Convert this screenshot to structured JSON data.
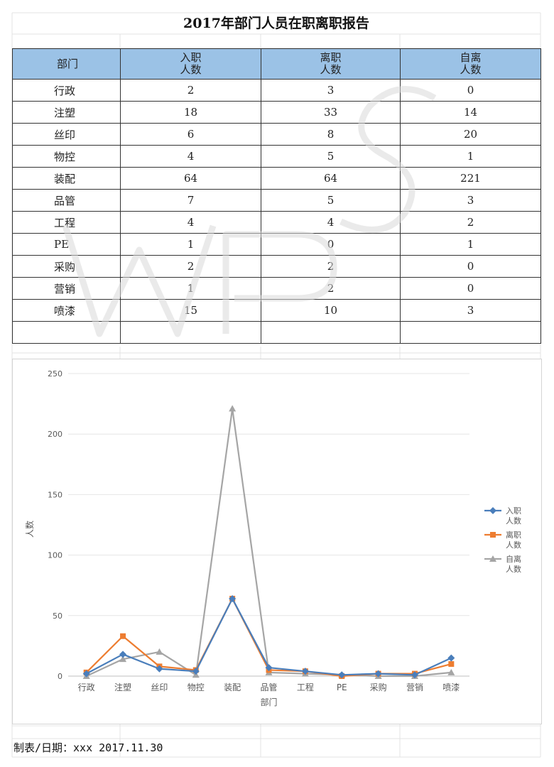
{
  "report": {
    "title": "2017年部门人员在职离职报告",
    "footer": "制表/日期：xxx 2017.11.30"
  },
  "table": {
    "headers": [
      {
        "lines": [
          "部门"
        ]
      },
      {
        "lines": [
          "入职",
          "人数"
        ]
      },
      {
        "lines": [
          "离职",
          "人数"
        ]
      },
      {
        "lines": [
          "自离",
          "人数"
        ]
      }
    ],
    "rows": [
      {
        "dept": "行政",
        "hired": "2",
        "left": "3",
        "self_left": "0"
      },
      {
        "dept": "注塑",
        "hired": "18",
        "left": "33",
        "self_left": "14"
      },
      {
        "dept": "丝印",
        "hired": "6",
        "left": "8",
        "self_left": "20"
      },
      {
        "dept": "物控",
        "hired": "4",
        "left": "5",
        "self_left": "1"
      },
      {
        "dept": "装配",
        "hired": "64",
        "left": "64",
        "self_left": "221"
      },
      {
        "dept": "品管",
        "hired": "7",
        "left": "5",
        "self_left": "3"
      },
      {
        "dept": "工程",
        "hired": "4",
        "left": "4",
        "self_left": "2"
      },
      {
        "dept": "PE",
        "hired": "1",
        "left": "0",
        "self_left": "1"
      },
      {
        "dept": "采购",
        "hired": "2",
        "left": "2",
        "self_left": "0"
      },
      {
        "dept": "营销",
        "hired": "1",
        "left": "2",
        "self_left": "0"
      },
      {
        "dept": "喷漆",
        "hired": "15",
        "left": "10",
        "self_left": "3"
      }
    ]
  },
  "chart_data": {
    "type": "line",
    "categories": [
      "行政",
      "注塑",
      "丝印",
      "物控",
      "装配",
      "品管",
      "工程",
      "PE",
      "采购",
      "营销",
      "喷漆"
    ],
    "series": [
      {
        "name": "入职\n人数",
        "legend_lines": [
          "入职",
          "人数"
        ],
        "color": "#4a7ebb",
        "marker": "diamond",
        "values": [
          2,
          18,
          6,
          4,
          64,
          7,
          4,
          1,
          2,
          1,
          15
        ]
      },
      {
        "name": "离职\n人数",
        "legend_lines": [
          "离职",
          "人数"
        ],
        "color": "#ed7d31",
        "marker": "square",
        "values": [
          3,
          33,
          8,
          5,
          64,
          5,
          4,
          0,
          2,
          2,
          10
        ]
      },
      {
        "name": "自离\n人数",
        "legend_lines": [
          "自离",
          "人数"
        ],
        "color": "#a5a5a5",
        "marker": "triangle",
        "values": [
          0,
          14,
          20,
          1,
          221,
          3,
          2,
          1,
          0,
          0,
          3
        ]
      }
    ],
    "xlabel": "部门",
    "ylabel": "人数",
    "ylim": [
      0,
      250
    ],
    "yticks": [
      0,
      50,
      100,
      150,
      200,
      250
    ],
    "grid": true,
    "legend_position": "right"
  },
  "watermark": {
    "text": "WPS",
    "color": "#d9d9d9"
  }
}
